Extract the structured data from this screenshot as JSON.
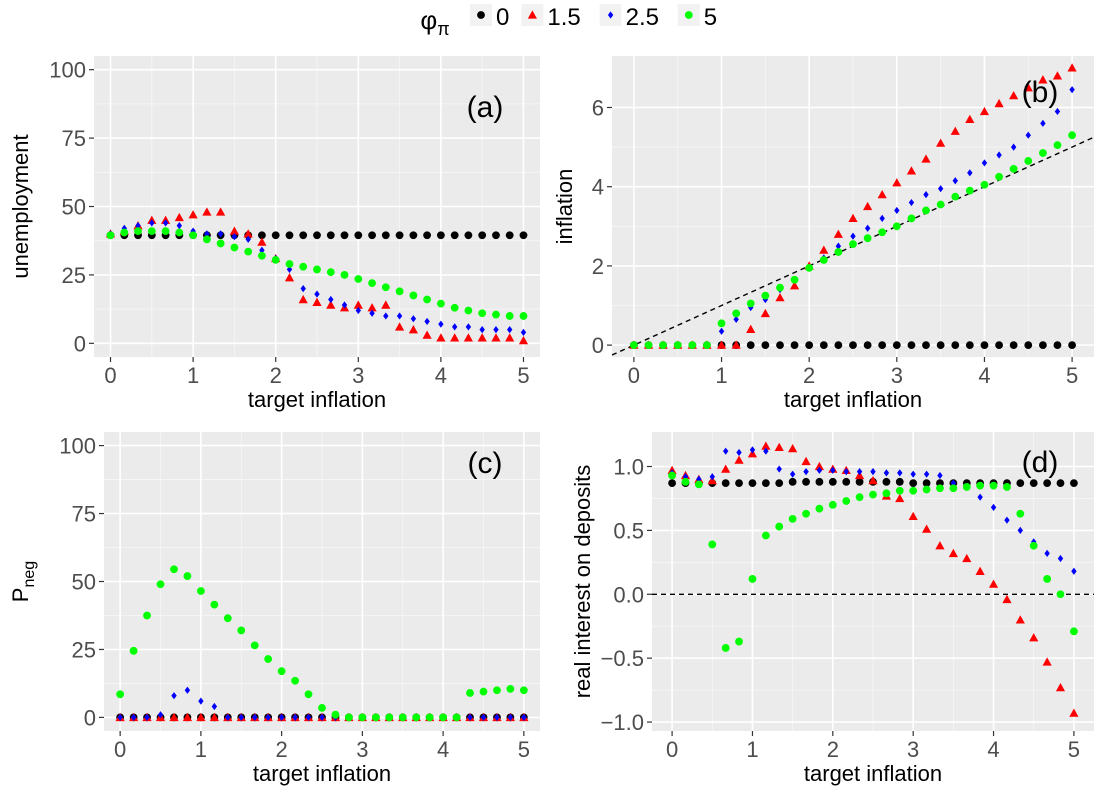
{
  "legend": {
    "title_main": "φ",
    "title_sub": "π",
    "entries": [
      {
        "label": "0",
        "color": "#000000",
        "shape": "circle"
      },
      {
        "label": "1.5",
        "color": "#ff0000",
        "shape": "triangle"
      },
      {
        "label": "2.5",
        "color": "#0000ff",
        "shape": "diamond"
      },
      {
        "label": "5",
        "color": "#00ff00",
        "shape": "circle"
      }
    ]
  },
  "chart_data": [
    {
      "type": "scatter",
      "panel": "(a)",
      "xlabel": "target inflation",
      "ylabel": "unemployment",
      "xlim": [
        -0.2,
        5.2
      ],
      "ylim": [
        -5,
        105
      ],
      "xticks": [
        0,
        1,
        2,
        3,
        4,
        5
      ],
      "yticks": [
        0,
        25,
        50,
        75,
        100
      ],
      "ytick_labels": [
        "0",
        "25",
        "50",
        "75",
        "100"
      ],
      "grid": true,
      "x": [
        0,
        0.167,
        0.333,
        0.5,
        0.667,
        0.833,
        1,
        1.167,
        1.333,
        1.5,
        1.667,
        1.833,
        2,
        2.167,
        2.333,
        2.5,
        2.667,
        2.833,
        3,
        3.167,
        3.333,
        3.5,
        3.667,
        3.833,
        4,
        4.167,
        4.333,
        4.5,
        4.667,
        4.833,
        5
      ],
      "series": [
        {
          "name": "0",
          "values": [
            39.5,
            39.5,
            39.5,
            39.5,
            39.5,
            39.5,
            39.5,
            39.5,
            39.5,
            39.5,
            39.5,
            39.5,
            39.5,
            39.5,
            39.5,
            39.5,
            39.5,
            39.5,
            39.5,
            39.5,
            39.5,
            39.5,
            39.5,
            39.5,
            39.5,
            39.5,
            39.5,
            39.5,
            39.5,
            39.5,
            39.5
          ]
        },
        {
          "name": "1.5",
          "values": [
            40,
            41,
            43,
            45,
            45,
            46,
            47,
            48,
            48,
            41,
            40,
            37,
            31,
            24,
            16,
            15,
            14,
            13,
            14,
            13,
            14,
            6,
            5,
            3,
            2,
            2,
            2,
            2,
            2,
            2,
            1
          ]
        },
        {
          "name": "2.5",
          "values": [
            40,
            42,
            43,
            44,
            44,
            43,
            41,
            40,
            40,
            39,
            38,
            34,
            31,
            27,
            20,
            18,
            16,
            14,
            12,
            11,
            10,
            10,
            9,
            8,
            7,
            6,
            6,
            5,
            5,
            5,
            4
          ]
        },
        {
          "name": "5",
          "values": [
            39.5,
            40.5,
            41,
            41,
            41,
            40.5,
            39.5,
            38,
            36.5,
            35,
            33.5,
            32,
            30.5,
            29,
            28,
            27,
            26,
            25,
            23.5,
            22,
            20.5,
            19,
            17.5,
            16,
            14.5,
            13,
            12,
            11,
            10.5,
            10,
            10
          ]
        }
      ]
    },
    {
      "type": "scatter",
      "panel": "(b)",
      "xlabel": "target inflation",
      "ylabel": "inflation",
      "xlim": [
        -0.25,
        5.25
      ],
      "ylim": [
        -0.3,
        7.3
      ],
      "xticks": [
        0,
        1,
        2,
        3,
        4,
        5
      ],
      "yticks": [
        0,
        2,
        4,
        6
      ],
      "ytick_labels": [
        "0",
        "2",
        "4",
        "6"
      ],
      "grid": true,
      "reference_line": {
        "kind": "y=x",
        "style": "dashed"
      },
      "x": [
        0,
        0.167,
        0.333,
        0.5,
        0.667,
        0.833,
        1,
        1.167,
        1.333,
        1.5,
        1.667,
        1.833,
        2,
        2.167,
        2.333,
        2.5,
        2.667,
        2.833,
        3,
        3.167,
        3.333,
        3.5,
        3.667,
        3.833,
        4,
        4.167,
        4.333,
        4.5,
        4.667,
        4.833,
        5
      ],
      "series": [
        {
          "name": "0",
          "values": [
            0,
            0,
            0,
            0,
            0,
            0,
            0,
            0,
            0,
            0,
            0,
            0,
            0,
            0,
            0,
            0,
            0,
            0,
            0,
            0,
            0,
            0,
            0,
            0,
            0,
            0,
            0,
            0,
            0,
            0,
            0
          ]
        },
        {
          "name": "1.5",
          "values": [
            0,
            0,
            0,
            0,
            0,
            0,
            0,
            0,
            0.4,
            0.8,
            1.2,
            1.5,
            2.0,
            2.4,
            2.8,
            3.2,
            3.5,
            3.8,
            4.1,
            4.4,
            4.7,
            5.1,
            5.4,
            5.7,
            5.9,
            6.1,
            6.3,
            6.5,
            6.7,
            6.8,
            7.0
          ]
        },
        {
          "name": "2.5",
          "values": [
            0,
            0,
            0,
            0,
            0,
            0,
            0.35,
            0.65,
            0.95,
            1.15,
            1.4,
            1.65,
            1.95,
            2.2,
            2.5,
            2.75,
            2.95,
            3.2,
            3.4,
            3.6,
            3.8,
            3.95,
            4.15,
            4.35,
            4.6,
            4.8,
            5.0,
            5.3,
            5.6,
            5.9,
            6.45
          ]
        },
        {
          "name": "5",
          "values": [
            0,
            0,
            0,
            0,
            0,
            0,
            0.55,
            0.8,
            1.05,
            1.25,
            1.45,
            1.65,
            1.95,
            2.15,
            2.35,
            2.55,
            2.7,
            2.85,
            3.0,
            3.2,
            3.4,
            3.55,
            3.75,
            3.9,
            4.05,
            4.25,
            4.45,
            4.65,
            4.85,
            5.05,
            5.3
          ]
        }
      ]
    },
    {
      "type": "scatter",
      "panel": "(c)",
      "xlabel": "target inflation",
      "ylabel_main": "P",
      "ylabel_sub": "neg",
      "xlim": [
        -0.2,
        5.2
      ],
      "ylim": [
        -5,
        105
      ],
      "xticks": [
        0,
        1,
        2,
        3,
        4,
        5
      ],
      "yticks": [
        0,
        25,
        50,
        75,
        100
      ],
      "ytick_labels": [
        "0",
        "25",
        "50",
        "75",
        "100"
      ],
      "grid": true,
      "x": [
        0,
        0.167,
        0.333,
        0.5,
        0.667,
        0.833,
        1,
        1.167,
        1.333,
        1.5,
        1.667,
        1.833,
        2,
        2.167,
        2.333,
        2.5,
        2.667,
        2.833,
        3,
        3.167,
        3.333,
        3.5,
        3.667,
        3.833,
        4,
        4.167,
        4.333,
        4.5,
        4.667,
        4.833,
        5
      ],
      "series": [
        {
          "name": "0",
          "values": [
            0,
            0,
            0,
            0,
            0,
            0,
            0,
            0,
            0,
            0,
            0,
            0,
            0,
            0,
            0,
            0,
            0,
            0,
            0,
            0,
            0,
            0,
            0,
            0,
            0,
            0,
            0,
            0,
            0,
            0,
            0
          ]
        },
        {
          "name": "1.5",
          "values": [
            0,
            0,
            0,
            0,
            0,
            0,
            0,
            0,
            0,
            0,
            0,
            0,
            0,
            0,
            0,
            0,
            0,
            0,
            0,
            0,
            0,
            0,
            0,
            0,
            0,
            0,
            0,
            0,
            0,
            0,
            0
          ]
        },
        {
          "name": "2.5",
          "values": [
            0,
            0,
            0,
            1,
            8,
            10,
            6,
            4,
            0,
            0,
            0,
            0,
            0,
            0,
            0,
            0,
            0,
            0,
            0,
            0,
            0,
            0,
            0,
            0,
            0,
            0,
            0,
            0,
            0,
            0,
            0
          ]
        },
        {
          "name": "5",
          "values": [
            8.5,
            24.5,
            37.5,
            49,
            54.5,
            52,
            46.5,
            41.5,
            36.5,
            32,
            26.5,
            21.5,
            17,
            13.5,
            8.5,
            3.5,
            1,
            0,
            0,
            0,
            0,
            0,
            0,
            0,
            0,
            0,
            9,
            9.5,
            10,
            10.5,
            10
          ]
        }
      ]
    },
    {
      "type": "scatter",
      "panel": "(d)",
      "xlabel": "target inflation",
      "ylabel": "real interest on deposits",
      "xlim": [
        -0.25,
        5.25
      ],
      "ylim": [
        -1.07,
        1.27
      ],
      "xticks": [
        0,
        1,
        2,
        3,
        4,
        5
      ],
      "yticks": [
        -1.0,
        -0.5,
        0.0,
        0.5,
        1.0
      ],
      "ytick_labels": [
        "−1.0",
        "−0.5",
        "0.0",
        "0.5",
        "1.0"
      ],
      "grid": true,
      "reference_line": {
        "kind": "y=0",
        "style": "dashed"
      },
      "x": [
        0,
        0.167,
        0.333,
        0.5,
        0.667,
        0.833,
        1,
        1.167,
        1.333,
        1.5,
        1.667,
        1.833,
        2,
        2.167,
        2.333,
        2.5,
        2.667,
        2.833,
        3,
        3.167,
        3.333,
        3.5,
        3.667,
        3.833,
        4,
        4.167,
        4.333,
        4.5,
        4.667,
        4.833,
        5
      ],
      "series": [
        {
          "name": "0",
          "values": [
            0.87,
            0.87,
            0.87,
            0.87,
            0.87,
            0.87,
            0.87,
            0.87,
            0.87,
            0.88,
            0.88,
            0.88,
            0.88,
            0.88,
            0.88,
            0.88,
            0.88,
            0.88,
            0.87,
            0.87,
            0.87,
            0.87,
            0.87,
            0.87,
            0.87,
            0.87,
            0.87,
            0.87,
            0.87,
            0.87,
            0.87
          ]
        },
        {
          "name": "1.5",
          "values": [
            0.97,
            0.93,
            0.9,
            0.89,
            0.98,
            1.05,
            1.1,
            1.16,
            1.15,
            1.14,
            1.04,
            1.0,
            0.98,
            0.97,
            0.93,
            0.89,
            0.77,
            0.75,
            0.61,
            0.51,
            0.38,
            0.32,
            0.28,
            0.18,
            0.08,
            -0.04,
            -0.2,
            -0.34,
            -0.53,
            -0.73,
            -0.93
          ]
        },
        {
          "name": "2.5",
          "values": [
            0.95,
            0.92,
            0.9,
            0.92,
            1.12,
            1.11,
            1.13,
            1.12,
            0.98,
            0.94,
            0.96,
            0.97,
            0.97,
            0.96,
            0.96,
            0.96,
            0.95,
            0.95,
            0.94,
            0.94,
            0.93,
            0.87,
            0.84,
            0.76,
            0.68,
            0.58,
            0.5,
            0.41,
            0.32,
            0.28,
            0.18
          ]
        },
        {
          "name": "5",
          "values": [
            0.93,
            0.88,
            0.86,
            0.39,
            -0.42,
            -0.37,
            0.12,
            0.46,
            0.53,
            0.59,
            0.63,
            0.67,
            0.7,
            0.73,
            0.76,
            0.78,
            0.79,
            0.81,
            0.81,
            0.82,
            0.83,
            0.83,
            0.84,
            0.85,
            0.85,
            0.84,
            0.63,
            0.38,
            0.12,
            0.0,
            -0.29
          ]
        }
      ]
    }
  ]
}
